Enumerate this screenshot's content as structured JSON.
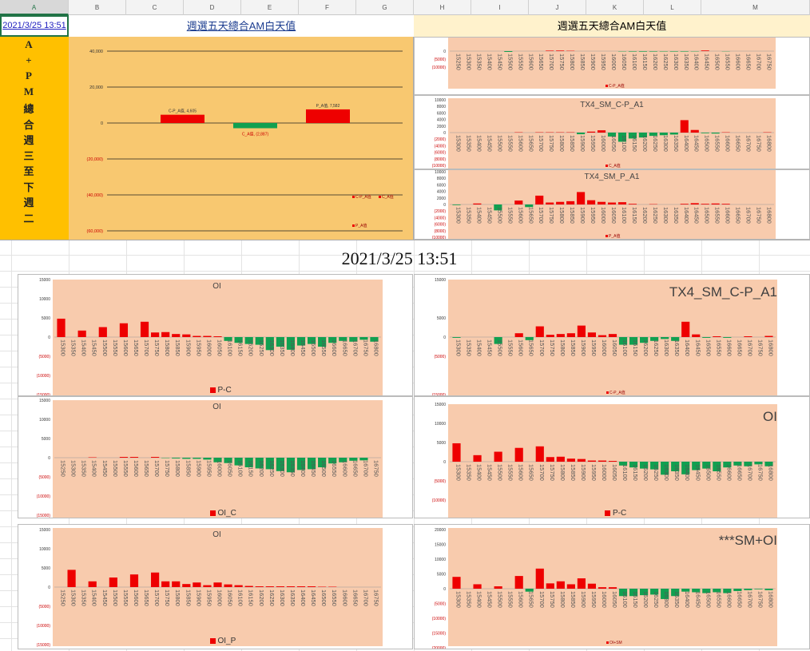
{
  "columns": [
    "A",
    "B",
    "C",
    "D",
    "E",
    "F",
    "G",
    "H",
    "I",
    "J",
    "K",
    "L",
    "M"
  ],
  "cell_a1": "2021/3/25 13:51",
  "title_left": "週選五天總合AM白天值",
  "title_right": "週選五天總合AM白天值",
  "vertical_label": [
    "A",
    "+",
    "P",
    "M",
    "總",
    "合",
    "週",
    "三",
    "至",
    "下",
    "週",
    "二"
  ],
  "timestamp": "2021/3/25 13:51",
  "colors": {
    "pos": "#ee0000",
    "neg": "#11a050",
    "panel": "#f8cbad",
    "panel_top": "#f8c870",
    "vbar": "#ffc000",
    "header": "#fff2cc"
  },
  "summary_chart": {
    "title": "",
    "yticks": [
      "40,000",
      "20,000",
      "0",
      "(20,000)",
      "(40,000)",
      "(60,000)"
    ],
    "bars": [
      {
        "name": "C-P_A值",
        "value": 4605,
        "label": "C-P_A值, 4,605"
      },
      {
        "name": "C_A值",
        "value": -2887,
        "label": "C_A值, (2,887)"
      },
      {
        "name": "P_A值",
        "value": 7582,
        "label": "P_A值, 7,582"
      }
    ],
    "legend": [
      "C-P_A值",
      "C_A值",
      "P_A值"
    ]
  },
  "chart_data": [
    {
      "id": "p1",
      "type": "bar",
      "title": "",
      "legend": "C-P_A值",
      "legend_small": true,
      "yticks": [
        "0",
        "(5000)",
        "(10000)"
      ],
      "yt_vals": [
        0,
        -5000,
        -10000
      ],
      "ylim": [
        -11000,
        4000
      ],
      "categories": [
        "15250",
        "15300",
        "15350",
        "15400",
        "15450",
        "15500",
        "15550",
        "15600",
        "15650",
        "15700",
        "15750",
        "15800",
        "15850",
        "15900",
        "15950",
        "16000",
        "16050",
        "16100",
        "16150",
        "16200",
        "16250",
        "16300",
        "16350",
        "16400",
        "16450",
        "16500",
        "16550",
        "16600",
        "16650",
        "16700",
        "16750"
      ],
      "values": [
        0,
        0,
        100,
        120,
        -100,
        -500,
        0,
        80,
        30,
        300,
        350,
        200,
        100,
        100,
        50,
        50,
        -200,
        -300,
        -350,
        -300,
        -250,
        -300,
        -300,
        -200,
        400,
        50,
        -150,
        0,
        -80,
        -100,
        120
      ]
    },
    {
      "id": "p2",
      "type": "bar",
      "title": "TX4_SM_C-P_A1",
      "legend": "C_A值",
      "legend_small": true,
      "yticks": [
        "10000",
        "8000",
        "6000",
        "4000",
        "2000",
        "0",
        "(2000)",
        "(4000)",
        "(6000)",
        "(8000)",
        "(10000)"
      ],
      "yt_vals": [
        10000,
        8000,
        6000,
        4000,
        2000,
        0,
        -2000,
        -4000,
        -6000,
        -8000,
        -10000
      ],
      "ylim": [
        -10000,
        10000
      ],
      "categories": [
        "15300",
        "15350",
        "15400",
        "15450",
        "15500",
        "15550",
        "15600",
        "15650",
        "15700",
        "15750",
        "15800",
        "15850",
        "15900",
        "15950",
        "16000",
        "16050",
        "16100",
        "16150",
        "16200",
        "16250",
        "16300",
        "16350",
        "16400",
        "16450",
        "16500",
        "16550",
        "16600",
        "16650",
        "16700",
        "16750",
        "16800"
      ],
      "values": [
        0,
        0,
        0,
        0,
        0,
        0,
        100,
        0,
        100,
        100,
        100,
        100,
        -500,
        300,
        700,
        -1200,
        -2800,
        -1800,
        -1500,
        -1000,
        -800,
        -600,
        3800,
        800,
        -200,
        -300,
        100,
        0,
        0,
        0,
        100
      ]
    },
    {
      "id": "p3",
      "type": "bar",
      "title": "TX4_SM_P_A1",
      "legend": "P_A值",
      "legend_small": true,
      "yticks": [
        "10000",
        "8000",
        "6000",
        "4000",
        "2000",
        "0",
        "(2000)",
        "(4000)",
        "(6000)",
        "(8000)",
        "(10000)"
      ],
      "yt_vals": [
        10000,
        8000,
        6000,
        4000,
        2000,
        0,
        -2000,
        -4000,
        -6000,
        -8000,
        -10000
      ],
      "ylim": [
        -10000,
        10000
      ],
      "categories": [
        "15300",
        "15350",
        "15400",
        "15450",
        "15500",
        "15550",
        "15600",
        "15650",
        "15700",
        "15750",
        "15800",
        "15850",
        "15900",
        "15950",
        "16000",
        "16050",
        "16100",
        "16150",
        "16200",
        "16250",
        "16300",
        "16350",
        "16400",
        "16450",
        "16500",
        "16550",
        "16600",
        "16650",
        "16700",
        "16750",
        "16800"
      ],
      "values": [
        -200,
        0,
        300,
        0,
        -1800,
        0,
        1200,
        -800,
        2700,
        600,
        800,
        1000,
        3800,
        1300,
        800,
        600,
        700,
        200,
        0,
        100,
        0,
        0,
        200,
        400,
        200,
        300,
        200,
        0,
        0,
        0,
        0
      ]
    },
    {
      "id": "p4",
      "type": "bar",
      "title": "OI",
      "legend": "P-C",
      "legend_small": false,
      "yticks": [
        "15000",
        "10000",
        "5000",
        "0",
        "(5000)",
        "(10000)",
        "(15000)"
      ],
      "yt_vals": [
        15000,
        10000,
        5000,
        0,
        -5000,
        -10000,
        -15000
      ],
      "ylim": [
        -15000,
        15000
      ],
      "categories": [
        "15300",
        "15350",
        "15400",
        "15450",
        "15500",
        "15550",
        "15600",
        "15650",
        "15700",
        "15750",
        "15800",
        "15850",
        "15900",
        "15950",
        "16000",
        "16050",
        "16100",
        "16150",
        "16200",
        "16250",
        "16300",
        "16350",
        "16400",
        "16450",
        "16500",
        "16550",
        "16600",
        "16650",
        "16700",
        "16750",
        "16800"
      ],
      "values": [
        4800,
        0,
        1700,
        0,
        2600,
        0,
        3600,
        0,
        4000,
        1200,
        1300,
        800,
        700,
        300,
        300,
        200,
        -1000,
        -1500,
        -1800,
        -2000,
        -3400,
        -2500,
        -3300,
        -2200,
        -1800,
        -2500,
        -1500,
        -1000,
        -1200,
        -700,
        -1200
      ]
    },
    {
      "id": "p5",
      "type": "bar",
      "title": "TX4_SM_C-P_A1",
      "big_title": true,
      "legend": "C-P_A值",
      "legend_small": true,
      "yticks": [
        "25000",
        "15000",
        "5000",
        "0",
        "(5000)",
        "(15000)"
      ],
      "yt_vals": [
        25000,
        15000,
        5000,
        0,
        -5000,
        -15000
      ],
      "ylim": [
        -15000,
        25000
      ],
      "categories": [
        "15300",
        "15350",
        "15400",
        "15450",
        "15500",
        "15550",
        "15600",
        "15650",
        "15700",
        "15750",
        "15800",
        "15850",
        "15900",
        "15950",
        "16000",
        "16050",
        "16100",
        "16150",
        "16200",
        "16250",
        "16300",
        "16350",
        "16400",
        "16450",
        "16500",
        "16550",
        "16600",
        "16650",
        "16700",
        "16750",
        "16800"
      ],
      "values": [
        -200,
        0,
        0,
        0,
        -1800,
        0,
        1000,
        -800,
        2800,
        600,
        800,
        1000,
        3000,
        1200,
        500,
        800,
        -2000,
        -2000,
        -1500,
        -1000,
        -500,
        -1000,
        4000,
        700,
        -200,
        200,
        -200,
        0,
        200,
        0,
        300
      ]
    },
    {
      "id": "p6",
      "type": "bar",
      "title": "OI",
      "legend": "OI_C",
      "legend_small": false,
      "yticks": [
        "15000",
        "10000",
        "5000",
        "0",
        "(5000)",
        "(10000)",
        "(15000)"
      ],
      "yt_vals": [
        15000,
        10000,
        5000,
        0,
        -5000,
        -10000,
        -15000
      ],
      "ylim": [
        -15000,
        15000
      ],
      "categories": [
        "15250",
        "15300",
        "15350",
        "15400",
        "15450",
        "15500",
        "15550",
        "15600",
        "15650",
        "15700",
        "15750",
        "15800",
        "15850",
        "15900",
        "15950",
        "16000",
        "16050",
        "16100",
        "16150",
        "16200",
        "16250",
        "16300",
        "16350",
        "16400",
        "16450",
        "16500",
        "16550",
        "16600",
        "16650",
        "16700",
        "16750"
      ],
      "values": [
        0,
        0,
        0,
        100,
        0,
        0,
        200,
        200,
        0,
        200,
        -100,
        -200,
        -300,
        -300,
        -500,
        -1200,
        -1400,
        -2000,
        -2500,
        -2800,
        -3000,
        -3500,
        -3800,
        -3200,
        -3000,
        -2500,
        -1500,
        -1200,
        -800,
        -700,
        0
      ]
    },
    {
      "id": "p7",
      "type": "bar",
      "title": "OI",
      "big_title": true,
      "legend": "P-C",
      "legend_small": false,
      "yticks": [
        "15000",
        "10000",
        "5000",
        "0",
        "(5000)",
        "(10000)",
        "(15000)"
      ],
      "yt_vals": [
        15000,
        10000,
        5000,
        0,
        -5000,
        -10000,
        -15000
      ],
      "ylim": [
        -15000,
        15000
      ],
      "categories": [
        "15300",
        "15350",
        "15400",
        "15450",
        "15500",
        "15550",
        "15600",
        "15650",
        "15700",
        "15750",
        "15800",
        "15850",
        "15900",
        "15950",
        "16000",
        "16050",
        "16100",
        "16150",
        "16200",
        "16250",
        "16300",
        "16350",
        "16400",
        "16450",
        "16500",
        "16550",
        "16600",
        "16650",
        "16700",
        "16750",
        "16800"
      ],
      "values": [
        4800,
        0,
        1700,
        0,
        2600,
        0,
        3600,
        0,
        4000,
        1200,
        1300,
        800,
        700,
        300,
        300,
        200,
        -1000,
        -1500,
        -1800,
        -2000,
        -3400,
        -2500,
        -3300,
        -2200,
        -1800,
        -2500,
        -1500,
        -1000,
        -1200,
        -700,
        -1200
      ]
    },
    {
      "id": "p8",
      "type": "bar",
      "title": "OI",
      "legend": "OI_P",
      "legend_small": false,
      "yticks": [
        "15000",
        "10000",
        "5000",
        "0",
        "(5000)",
        "(10000)",
        "(15000)"
      ],
      "yt_vals": [
        15000,
        10000,
        5000,
        0,
        -5000,
        -10000,
        -15000
      ],
      "ylim": [
        -15000,
        15000
      ],
      "categories": [
        "15250",
        "15300",
        "15350",
        "15400",
        "15450",
        "15500",
        "15550",
        "15600",
        "15650",
        "15700",
        "15750",
        "15800",
        "15850",
        "15900",
        "15950",
        "16000",
        "16050",
        "16100",
        "16150",
        "16200",
        "16250",
        "16300",
        "16350",
        "16400",
        "16450",
        "16500",
        "16550",
        "16600",
        "16650",
        "16700",
        "16750"
      ],
      "values": [
        0,
        4500,
        0,
        1500,
        0,
        2500,
        0,
        3300,
        0,
        3800,
        1500,
        1500,
        800,
        1200,
        500,
        1200,
        700,
        500,
        300,
        200,
        200,
        200,
        200,
        200,
        200,
        100,
        100,
        0,
        0,
        0,
        0
      ]
    },
    {
      "id": "p9",
      "type": "bar",
      "title": "***SM+OI",
      "big_title": true,
      "legend": "OI+SM",
      "legend_small": true,
      "yticks": [
        "20000",
        "15000",
        "10000",
        "5000",
        "0",
        "(5000)",
        "(10000)",
        "(15000)",
        "(20000)"
      ],
      "yt_vals": [
        20000,
        15000,
        10000,
        5000,
        0,
        -5000,
        -10000,
        -15000,
        -20000
      ],
      "ylim": [
        -20000,
        20000
      ],
      "categories": [
        "15300",
        "15350",
        "15400",
        "15450",
        "15500",
        "15550",
        "15600",
        "15650",
        "15700",
        "15750",
        "15800",
        "15850",
        "15900",
        "15950",
        "16000",
        "16050",
        "16100",
        "16150",
        "16200",
        "16250",
        "16300",
        "16350",
        "16400",
        "16450",
        "16500",
        "16550",
        "16600",
        "16650",
        "16700",
        "16750",
        "16800"
      ],
      "values": [
        4000,
        0,
        1500,
        0,
        800,
        0,
        4300,
        -1000,
        6800,
        1800,
        2500,
        1500,
        3500,
        1700,
        500,
        500,
        -2500,
        -2500,
        -2200,
        -2000,
        -3500,
        -2500,
        -1000,
        -1200,
        -1500,
        -1200,
        -1500,
        -800,
        -500,
        -200,
        -500
      ]
    }
  ]
}
